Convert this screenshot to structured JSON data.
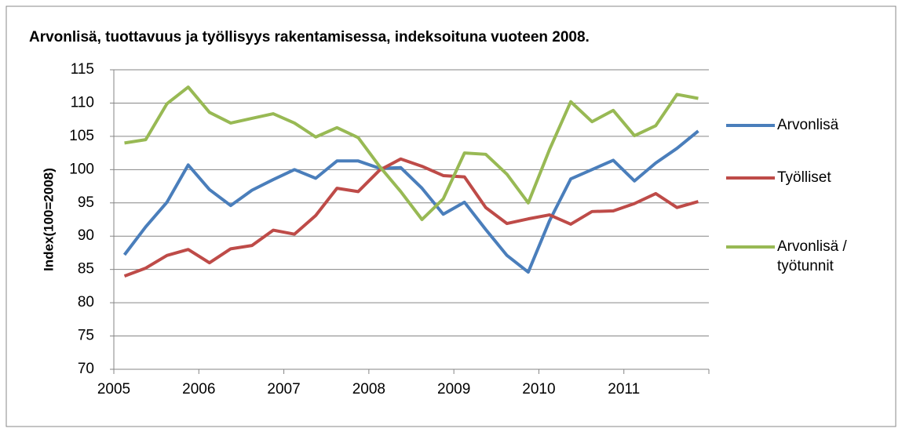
{
  "chart_data": {
    "type": "line",
    "title": "Arvonlisä, tuottavuus ja työllisyys rakentamisessa, indeksoituna vuoteen 2008.",
    "y_label": "Index(100=2008)",
    "x": [
      2005.125,
      2005.375,
      2005.625,
      2005.875,
      2006.125,
      2006.375,
      2006.625,
      2006.875,
      2007.125,
      2007.375,
      2007.625,
      2007.875,
      2008.125,
      2008.375,
      2008.625,
      2008.875,
      2009.125,
      2009.375,
      2009.625,
      2009.875,
      2010.125,
      2010.375,
      2010.625,
      2010.875,
      2011.125,
      2011.375,
      2011.625,
      2011.875
    ],
    "series": [
      {
        "name": "Arvonlisä",
        "color": "#4a7ebb",
        "values": [
          87.2,
          91.4,
          95.1,
          100.7,
          97.0,
          94.6,
          96.9,
          98.5,
          100.0,
          98.7,
          101.3,
          101.3,
          100.2,
          100.3,
          97.2,
          93.3,
          95.1,
          91.0,
          87.1,
          84.6,
          92.3,
          98.6,
          100.0,
          101.4,
          98.3,
          101.0,
          103.2,
          105.8
        ]
      },
      {
        "name": "Työlliset",
        "color": "#be4b48",
        "values": [
          84.0,
          85.2,
          87.1,
          88.0,
          86.0,
          88.1,
          88.6,
          90.9,
          90.3,
          93.1,
          97.2,
          96.7,
          99.9,
          101.6,
          100.5,
          99.1,
          98.9,
          94.3,
          91.9,
          92.6,
          93.2,
          91.8,
          93.7,
          93.8,
          94.9,
          96.4,
          94.3,
          95.2
        ]
      },
      {
        "name": "Arvonlisä / työtunnit",
        "color": "#98b954",
        "values": [
          104.0,
          104.5,
          109.9,
          112.4,
          108.6,
          107.0,
          107.7,
          108.4,
          107.0,
          104.9,
          106.3,
          104.8,
          100.5,
          96.7,
          92.5,
          95.6,
          102.5,
          102.3,
          99.3,
          95.0,
          103.0,
          110.2,
          107.2,
          108.9,
          105.1,
          106.6,
          111.3,
          110.7
        ]
      }
    ],
    "xlim": [
      2005,
      2012
    ],
    "xticks": [
      2005,
      2006,
      2007,
      2008,
      2009,
      2010,
      2011
    ],
    "ylim": [
      70,
      115
    ],
    "yticks": [
      70,
      75,
      80,
      85,
      90,
      95,
      100,
      105,
      110,
      115
    ],
    "grid": true,
    "legend": "right"
  }
}
